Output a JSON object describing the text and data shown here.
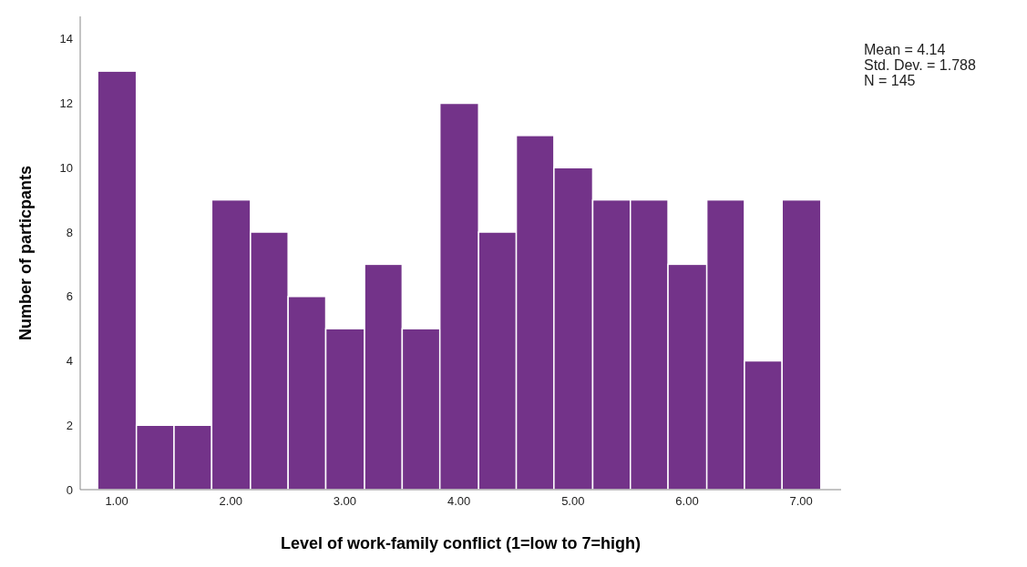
{
  "chart_data": {
    "type": "histogram",
    "xlabel": "Level of work-family conflict  (1=low to 7=high)",
    "ylabel": "Number of particpants",
    "bins": [
      0.83,
      1.17,
      1.5,
      1.83,
      2.17,
      2.5,
      2.83,
      3.17,
      3.5,
      3.83,
      4.17,
      4.5,
      4.83,
      5.17,
      5.5,
      5.83,
      6.17,
      6.5,
      6.83,
      7.17
    ],
    "values": [
      13,
      2,
      2,
      9,
      8,
      6,
      5,
      7,
      5,
      12,
      8,
      11,
      10,
      9,
      9,
      7,
      9,
      4,
      9
    ],
    "color": "#733389",
    "xlim": [
      0.68,
      7.35
    ],
    "xticks": [
      {
        "value": 1,
        "label": "1.00"
      },
      {
        "value": 2,
        "label": "2.00"
      },
      {
        "value": 3,
        "label": "3.00"
      },
      {
        "value": 4,
        "label": "4.00"
      },
      {
        "value": 5,
        "label": "5.00"
      },
      {
        "value": 6,
        "label": "6.00"
      },
      {
        "value": 7,
        "label": "7.00"
      }
    ],
    "ylim": [
      0,
      14.7
    ],
    "yticks": [
      0,
      2,
      4,
      6,
      8,
      10,
      12,
      14
    ],
    "grid": false,
    "annotations": [
      "Mean = 4.14",
      "Std. Dev. = 1.788",
      "N = 145"
    ]
  }
}
